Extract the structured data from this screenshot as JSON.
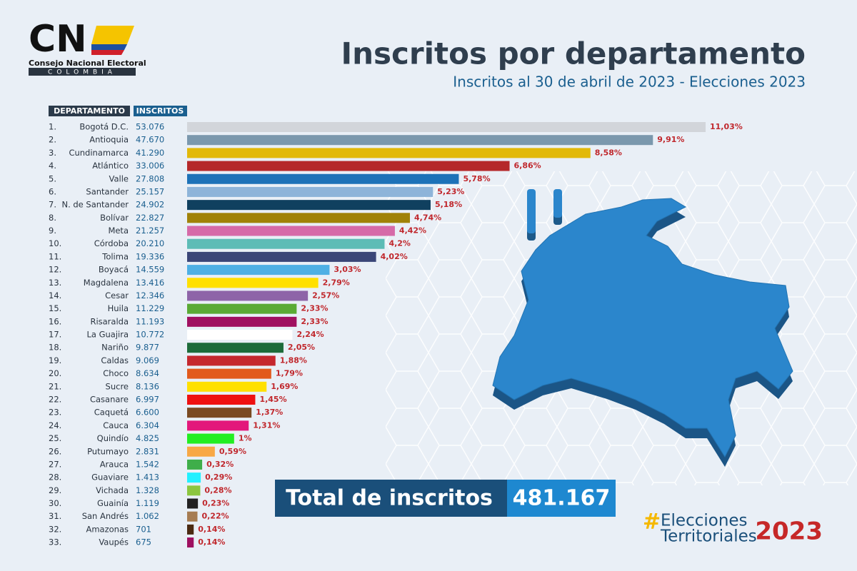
{
  "chart_data": {
    "type": "bar",
    "orientation": "horizontal",
    "title": "Inscritos por departamento",
    "subtitle": "Inscritos al 30 de abril de 2023 - Elecciones 2023",
    "column_headers": [
      "DEPARTAMENTO",
      "INSCRITOS"
    ],
    "ranks": [
      "1.",
      "2.",
      "3.",
      "4.",
      "5.",
      "6.",
      "7.",
      "8.",
      "9.",
      "10.",
      "11.",
      "12.",
      "13.",
      "14.",
      "15.",
      "16.",
      "17.",
      "18.",
      "19.",
      "20.",
      "21.",
      "22.",
      "23.",
      "24.",
      "25.",
      "26.",
      "27.",
      "28.",
      "29.",
      "30.",
      "31.",
      "32.",
      "33."
    ],
    "categories": [
      "Bogotá D.C.",
      "Antioquia",
      "Cundinamarca",
      "Atlántico",
      "Valle",
      "Santander",
      "N. de Santander",
      "Bolívar",
      "Meta",
      "Córdoba",
      "Tolima",
      "Boyacá",
      "Magdalena",
      "Cesar",
      "Huila",
      "Risaralda",
      "La Guajira",
      "Nariño",
      "Caldas",
      "Choco",
      "Sucre",
      "Casanare",
      "Caquetá",
      "Cauca",
      "Quindío",
      "Putumayo",
      "Arauca",
      "Guaviare",
      "Vichada",
      "Guainía",
      "San Andrés",
      "Amazonas",
      "Vaupés"
    ],
    "counts": [
      "53.076",
      "47.670",
      "41.290",
      "33.006",
      "27.808",
      "25.157",
      "24.902",
      "22.827",
      "21.257",
      "20.210",
      "19.336",
      "14.559",
      "13.416",
      "12.346",
      "11.229",
      "11.193",
      "10.772",
      "9.877",
      "9.069",
      "8.634",
      "8.136",
      "6.997",
      "6.600",
      "6.304",
      "4.825",
      "2.831",
      "1.542",
      "1.413",
      "1.328",
      "1.119",
      "1.062",
      "701",
      "675"
    ],
    "values": [
      11.03,
      9.91,
      8.58,
      6.86,
      5.78,
      5.23,
      5.18,
      4.74,
      4.42,
      4.2,
      4.02,
      3.03,
      2.79,
      2.57,
      2.33,
      2.33,
      2.24,
      2.05,
      1.88,
      1.79,
      1.69,
      1.45,
      1.37,
      1.31,
      1,
      0.59,
      0.32,
      0.29,
      0.28,
      0.23,
      0.22,
      0.14,
      0.14
    ],
    "value_labels": [
      "11,03%",
      "9,91%",
      "8,58%",
      "6,86%",
      "5,78%",
      "5,23%",
      "5,18%",
      "4,74%",
      "4,42%",
      "4,2%",
      "4,02%",
      "3,03%",
      "2,79%",
      "2,57%",
      "2,33%",
      "2,33%",
      "2,24%",
      "2,05%",
      "1,88%",
      "1,79%",
      "1,69%",
      "1,45%",
      "1,37%",
      "1,31%",
      "1%",
      "0,59%",
      "0,32%",
      "0,29%",
      "0,28%",
      "0,23%",
      "0,22%",
      "0,14%",
      "0,14%"
    ],
    "colors": [
      "#d2d5da",
      "#7b98ad",
      "#e2b90a",
      "#b5282a",
      "#1d72b8",
      "#8eb4d9",
      "#10405f",
      "#a08208",
      "#d66aa8",
      "#5dbcb6",
      "#3a4577",
      "#4fb0e4",
      "#ffe000",
      "#8e64a8",
      "#5aaa34",
      "#a01060",
      "#ffffff",
      "#1d6b3a",
      "#c5282e",
      "#e25a1c",
      "#ffe000",
      "#ee1111",
      "#7a4a22",
      "#e3187b",
      "#22ee22",
      "#f8a845",
      "#3fae4a",
      "#22f0ff",
      "#8cc63f",
      "#222222",
      "#a67c52",
      "#4a2a12",
      "#9e1060"
    ]
  },
  "total": {
    "label": "Total de inscritos",
    "value": "481.167"
  },
  "logo": {
    "mark": "CN",
    "name": "Consejo Nacional Electoral",
    "country": "COLOMBIA"
  },
  "hashtag": {
    "symbol": "#",
    "line1": "Elecciones",
    "line2": "Territoriales",
    "year": "2023"
  }
}
